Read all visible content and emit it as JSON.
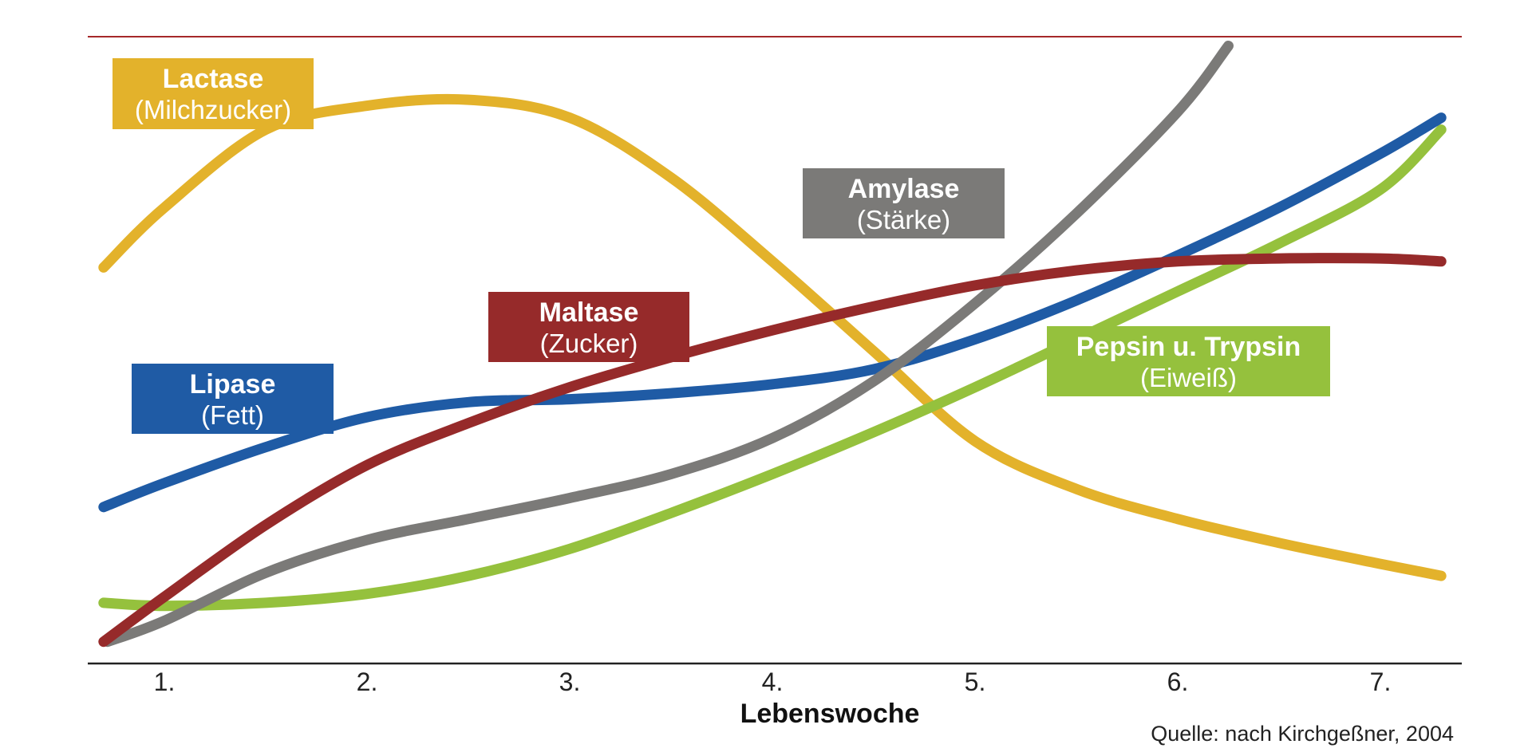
{
  "chart_data": {
    "type": "line",
    "title": "",
    "xlabel": "Lebenswoche",
    "ylabel": "",
    "categories": [
      "1.",
      "2.",
      "3.",
      "4.",
      "5.",
      "6.",
      "7."
    ],
    "xlim": [
      0.35,
      7.4
    ],
    "ylim": [
      0,
      100
    ],
    "grid": false,
    "series": [
      {
        "name": "Lactase",
        "subtitle": "(Milchzucker)",
        "color": "#E3B22B",
        "points": [
          [
            0.7,
            64
          ],
          [
            1.0,
            74
          ],
          [
            1.5,
            87
          ],
          [
            2.0,
            91
          ],
          [
            2.5,
            92
          ],
          [
            3.0,
            89
          ],
          [
            3.5,
            79
          ],
          [
            4.0,
            65
          ],
          [
            4.5,
            50
          ],
          [
            5.0,
            35
          ],
          [
            5.5,
            27
          ],
          [
            6.0,
            22
          ],
          [
            6.5,
            18
          ],
          [
            7.0,
            14.5
          ],
          [
            7.3,
            12.5
          ]
        ]
      },
      {
        "name": "Lipase",
        "subtitle": "(Fett)",
        "color": "#1F5BA5",
        "points": [
          [
            0.7,
            24
          ],
          [
            1.0,
            28
          ],
          [
            1.5,
            34
          ],
          [
            2.0,
            39
          ],
          [
            2.5,
            41.5
          ],
          [
            3.0,
            42
          ],
          [
            3.5,
            43
          ],
          [
            4.0,
            44.5
          ],
          [
            4.5,
            47
          ],
          [
            5.0,
            52
          ],
          [
            5.5,
            58.5
          ],
          [
            6.0,
            66
          ],
          [
            6.5,
            74
          ],
          [
            7.0,
            83
          ],
          [
            7.3,
            89
          ]
        ]
      },
      {
        "name": "Maltase",
        "subtitle": "(Zucker)",
        "color": "#962A2A",
        "points": [
          [
            0.7,
            1.5
          ],
          [
            1.0,
            9
          ],
          [
            1.5,
            21
          ],
          [
            2.0,
            31
          ],
          [
            2.5,
            38
          ],
          [
            3.0,
            44
          ],
          [
            3.5,
            49
          ],
          [
            4.0,
            53.5
          ],
          [
            4.5,
            57.5
          ],
          [
            5.0,
            61
          ],
          [
            5.5,
            63.5
          ],
          [
            6.0,
            65
          ],
          [
            6.5,
            65.5
          ],
          [
            7.0,
            65.5
          ],
          [
            7.3,
            65
          ]
        ]
      },
      {
        "name": "Amylase",
        "subtitle": "(Stärke)",
        "color": "#7B7A78",
        "points": [
          [
            0.72,
            1.5
          ],
          [
            1.0,
            5
          ],
          [
            1.5,
            13
          ],
          [
            2.0,
            18.5
          ],
          [
            2.5,
            22
          ],
          [
            3.0,
            25.5
          ],
          [
            3.5,
            29.5
          ],
          [
            4.0,
            35.5
          ],
          [
            4.5,
            45
          ],
          [
            5.0,
            58
          ],
          [
            5.5,
            73
          ],
          [
            6.0,
            90
          ],
          [
            6.25,
            101
          ]
        ]
      },
      {
        "name": "Pepsin u. Trypsin",
        "subtitle": "(Eiweiß)",
        "color": "#95C13D",
        "points": [
          [
            0.7,
            8
          ],
          [
            1.0,
            7.5
          ],
          [
            1.5,
            8
          ],
          [
            2.0,
            9.5
          ],
          [
            2.5,
            12.5
          ],
          [
            3.0,
            17
          ],
          [
            3.5,
            23
          ],
          [
            4.0,
            29.5
          ],
          [
            4.5,
            36.5
          ],
          [
            5.0,
            44
          ],
          [
            5.5,
            52
          ],
          [
            6.0,
            60
          ],
          [
            6.5,
            68
          ],
          [
            7.0,
            77
          ],
          [
            7.3,
            87
          ]
        ]
      }
    ]
  },
  "labels": {
    "lactase": {
      "name": "Lactase",
      "sub": "(Milchzucker)"
    },
    "amylase": {
      "name": "Amylase",
      "sub": "(Stärke)"
    },
    "maltase": {
      "name": "Maltase",
      "sub": "(Zucker)"
    },
    "lipase": {
      "name": "Lipase",
      "sub": "(Fett)"
    },
    "pepsin": {
      "name": "Pepsin u. Trypsin",
      "sub": "(Eiweiß)"
    }
  },
  "colors": {
    "top_rule": "#A6282A",
    "axis": "#222222"
  },
  "source": "Quelle: nach Kirchgeßner, 2004"
}
